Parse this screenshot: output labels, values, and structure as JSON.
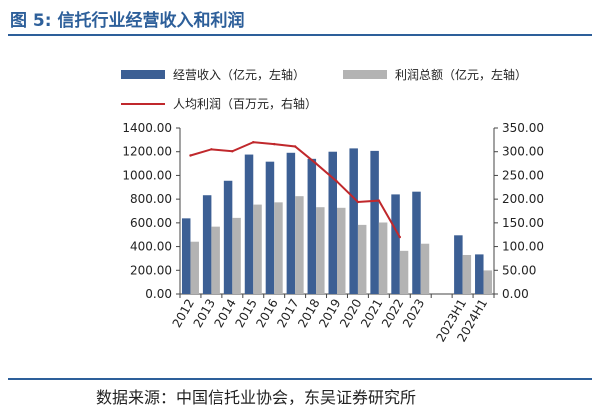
{
  "header": {
    "figure_label": "图 5:",
    "figure_title": "信托行业经营收入和利润"
  },
  "source": "数据来源：中国信托业协会，东吴证券研究所",
  "colors": {
    "revenue": "#3c5f94",
    "profit": "#b3b3b3",
    "per_capita": "#c0282c",
    "accent": "#2d5f9a"
  },
  "chart_data": {
    "type": "bar",
    "categories": [
      "2012",
      "2013",
      "2014",
      "2015",
      "2016",
      "2017",
      "2018",
      "2019",
      "2020",
      "2021",
      "2022",
      "2023",
      "",
      "2023H1",
      "2024H1"
    ],
    "series": [
      {
        "name": "经营收入（亿元，左轴）",
        "axis": "left",
        "kind": "bar",
        "values": [
          638,
          833,
          955,
          1176,
          1116,
          1191,
          1140,
          1200,
          1228,
          1207,
          840,
          863,
          null,
          495,
          334
        ]
      },
      {
        "name": "利润总额（亿元，左轴）",
        "axis": "left",
        "kind": "bar",
        "values": [
          441,
          568,
          642,
          754,
          773,
          825,
          732,
          727,
          583,
          603,
          364,
          424,
          null,
          329,
          199
        ]
      },
      {
        "name": "人均利润（百万元，右轴）",
        "axis": "right",
        "kind": "line",
        "values": [
          292,
          305,
          301,
          320,
          316,
          311,
          275,
          237,
          194,
          197,
          120,
          null,
          null,
          null,
          null
        ]
      }
    ],
    "y_left": {
      "min": 0,
      "max": 1400,
      "step": 200,
      "ticks": [
        "0.00",
        "200.00",
        "400.00",
        "600.00",
        "800.00",
        "1000.00",
        "1200.00",
        "1400.00"
      ]
    },
    "y_right": {
      "min": 0,
      "max": 350,
      "step": 50,
      "ticks": [
        "0.00",
        "50.00",
        "100.00",
        "150.00",
        "200.00",
        "250.00",
        "300.00",
        "350.00"
      ]
    },
    "grid": false,
    "legend_position": "top"
  }
}
